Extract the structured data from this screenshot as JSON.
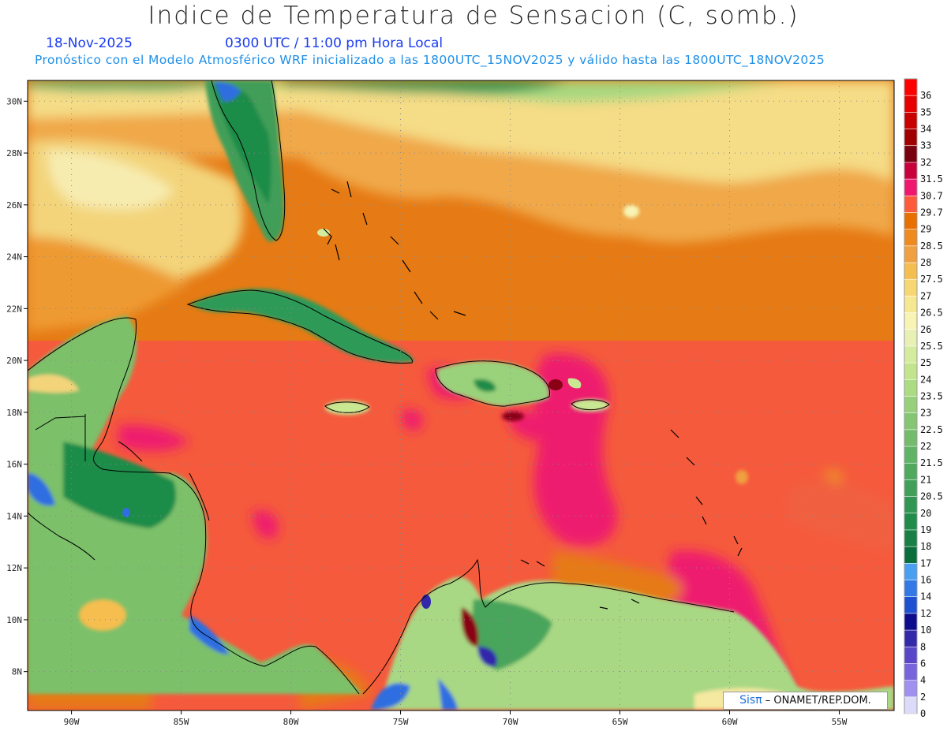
{
  "title": "Indice de Temperatura de Sensacion (C, somb.)",
  "date_text": "18-Nov-2025",
  "time_text": "0300 UTC / 11:00 pm Hora Local",
  "description": "Pronóstico con el Modelo Atmosférico WRF inicializado a las 1800UTC_15NOV2025 y válido hasta las  1800UTC_18NOV2025",
  "credit": {
    "logo": "Sisπ",
    "text": "– ONAMET/REP.DOM."
  },
  "map": {
    "lon_range": [
      -92,
      -52.5
    ],
    "lat_range": [
      6.5,
      30.8
    ],
    "lat_ticks": [
      "30N",
      "28N",
      "26N",
      "24N",
      "22N",
      "20N",
      "18N",
      "16N",
      "14N",
      "12N",
      "10N",
      "8N"
    ],
    "lon_ticks": [
      "90W",
      "85W",
      "80W",
      "75W",
      "70W",
      "65W",
      "60W",
      "55W"
    ]
  },
  "colorbar": {
    "labels": [
      "36",
      "35",
      "34",
      "33",
      "32",
      "31.5",
      "30.7",
      "29.7",
      "29",
      "28.5",
      "28",
      "27.5",
      "27",
      "26.5",
      "26",
      "25.5",
      "25",
      "24",
      "23.5",
      "23",
      "22.5",
      "22",
      "21.5",
      "21",
      "20.5",
      "20",
      "19",
      "18",
      "17",
      "16",
      "14",
      "12",
      "10",
      "8",
      "6",
      "4",
      "2",
      "0"
    ],
    "colors": [
      "#ff0000",
      "#e60000",
      "#c80000",
      "#a00000",
      "#7a0010",
      "#c8003c",
      "#f0186e",
      "#ff5a3c",
      "#e87000",
      "#ee8a1e",
      "#f0a040",
      "#f5be50",
      "#f7d772",
      "#f5e890",
      "#f8f4b4",
      "#e8f0b4",
      "#d4ec9e",
      "#c2e48c",
      "#acdc82",
      "#96d07a",
      "#84c672",
      "#72bc6c",
      "#60b466",
      "#50aa5e",
      "#40a058",
      "#309652",
      "#1f8c4a",
      "#188044",
      "#0a6e3c",
      "#4aa0f0",
      "#3278e6",
      "#1e50d2",
      "#0c0c8c",
      "#3228aa",
      "#5a46c8",
      "#7864dc",
      "#a090f0",
      "#dcdcfa"
    ]
  }
}
